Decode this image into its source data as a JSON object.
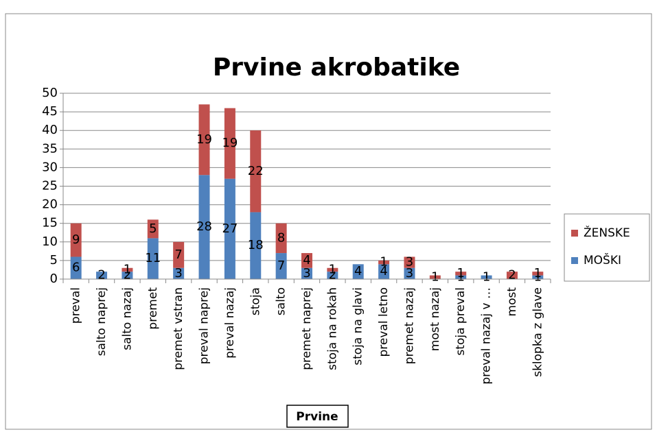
{
  "chart_data": {
    "type": "stacked_bar",
    "title": "Prvine akrobatike",
    "x_label": "Prvine",
    "categories": [
      "preval",
      "salto naprej",
      "salto nazaj",
      "premet",
      "premet vstran",
      "preval naprej",
      "preval nazaj",
      "stoja",
      "salto",
      "premet naprej",
      "stoja na rokah",
      "stoja na glavi",
      "preval letno",
      "premet nazaj",
      "most nazaj",
      "stoja preval",
      "preval nazaj v …",
      "most",
      "sklopka z glave"
    ],
    "series": [
      {
        "name": "MOŠKI",
        "color": "#4f81bd",
        "values": [
          6,
          2,
          2,
          11,
          3,
          28,
          27,
          18,
          7,
          3,
          2,
          4,
          4,
          3,
          null,
          1,
          1,
          null,
          1
        ]
      },
      {
        "name": "ŽENSKE",
        "color": "#c0504d",
        "values": [
          9,
          null,
          1,
          5,
          7,
          19,
          19,
          22,
          8,
          4,
          1,
          null,
          1,
          3,
          1,
          1,
          null,
          2,
          1
        ]
      }
    ],
    "ylim": [
      0,
      50
    ],
    "yticks": [
      0,
      5,
      10,
      15,
      20,
      25,
      30,
      35,
      40,
      45,
      50
    ],
    "grid": true,
    "legend": "right"
  }
}
